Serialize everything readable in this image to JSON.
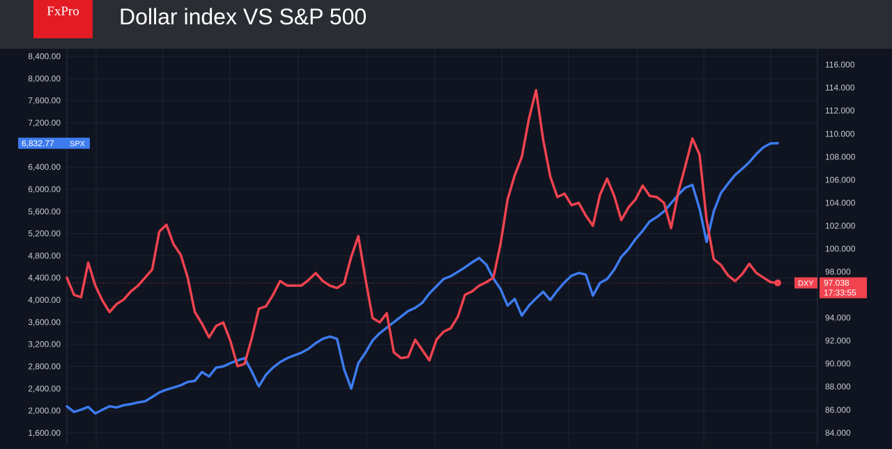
{
  "header": {
    "logo_text": "FxPro",
    "title": "Dollar index VS S&P 500"
  },
  "colors": {
    "header_bg": "#2a2d33",
    "chart_bg": "#0f1420",
    "brand_red": "#e31b23",
    "spx_blue": "#3d7bef",
    "dxy_red": "#f0434f",
    "grid": "#1c2433",
    "axis_text": "#c9ccd2"
  },
  "chart_data": {
    "type": "line",
    "title": "Dollar index VS S&P 500",
    "y_left": {
      "label": "SPX",
      "ticks": [
        1600,
        2000,
        2400,
        2800,
        3200,
        3600,
        4000,
        4400,
        4800,
        5200,
        5600,
        6000,
        6400,
        7200,
        7600,
        8000,
        8400
      ],
      "tick_labels": [
        "1,600.00",
        "2,000.00",
        "2,400.00",
        "2,800.00",
        "3,200.00",
        "3,600.00",
        "4,000.00",
        "4,400.00",
        "4,800.00",
        "5,200.00",
        "5,600.00",
        "6,000.00",
        "6,400.00",
        "7,200.00",
        "7,600.00",
        "8,000.00",
        "8,400.00"
      ],
      "range": [
        1372,
        8540
      ]
    },
    "y_right": {
      "label": "DXY",
      "ticks": [
        84,
        86,
        88,
        90,
        92,
        94,
        98,
        100,
        102,
        104,
        106,
        108,
        110,
        112,
        114,
        116
      ],
      "tick_labels": [
        "84.000",
        "86.000",
        "88.000",
        "90.000",
        "92.000",
        "94.000",
        "98.000",
        "100.000",
        "102.000",
        "104.000",
        "106.000",
        "108.000",
        "110.000",
        "112.000",
        "114.000",
        "116.000"
      ],
      "range": [
        82.9,
        117.4
      ]
    },
    "x_range": [
      0,
      100
    ],
    "grid": true,
    "series": [
      {
        "name": "SPX",
        "axis": "left",
        "last_value": 6832.77,
        "last_label": "6,832.77",
        "tag": "SPX",
        "points": [
          [
            0,
            2080
          ],
          [
            1,
            1980
          ],
          [
            2,
            2020
          ],
          [
            3,
            2070
          ],
          [
            4,
            1950
          ],
          [
            5,
            2020
          ],
          [
            6,
            2080
          ],
          [
            7,
            2060
          ],
          [
            8,
            2100
          ],
          [
            9,
            2120
          ],
          [
            10,
            2150
          ],
          [
            11,
            2170
          ],
          [
            12,
            2250
          ],
          [
            13,
            2330
          ],
          [
            14,
            2380
          ],
          [
            15,
            2420
          ],
          [
            16,
            2460
          ],
          [
            17,
            2520
          ],
          [
            18,
            2540
          ],
          [
            19,
            2700
          ],
          [
            20,
            2620
          ],
          [
            21,
            2780
          ],
          [
            22,
            2800
          ],
          [
            23,
            2860
          ],
          [
            24,
            2910
          ],
          [
            25,
            2950
          ],
          [
            26,
            2710
          ],
          [
            27,
            2440
          ],
          [
            28,
            2650
          ],
          [
            29,
            2780
          ],
          [
            30,
            2880
          ],
          [
            31,
            2950
          ],
          [
            32,
            3000
          ],
          [
            33,
            3050
          ],
          [
            34,
            3120
          ],
          [
            35,
            3220
          ],
          [
            36,
            3300
          ],
          [
            37,
            3340
          ],
          [
            38,
            3300
          ],
          [
            39,
            2750
          ],
          [
            40,
            2400
          ],
          [
            41,
            2860
          ],
          [
            42,
            3050
          ],
          [
            43,
            3270
          ],
          [
            44,
            3400
          ],
          [
            45,
            3500
          ],
          [
            46,
            3600
          ],
          [
            47,
            3700
          ],
          [
            48,
            3800
          ],
          [
            49,
            3860
          ],
          [
            50,
            3950
          ],
          [
            51,
            4120
          ],
          [
            52,
            4250
          ],
          [
            53,
            4380
          ],
          [
            54,
            4430
          ],
          [
            55,
            4510
          ],
          [
            56,
            4590
          ],
          [
            57,
            4680
          ],
          [
            58,
            4760
          ],
          [
            59,
            4640
          ],
          [
            60,
            4390
          ],
          [
            61,
            4200
          ],
          [
            62,
            3900
          ],
          [
            63,
            4020
          ],
          [
            64,
            3720
          ],
          [
            65,
            3900
          ],
          [
            66,
            4030
          ],
          [
            67,
            4150
          ],
          [
            68,
            4000
          ],
          [
            69,
            4170
          ],
          [
            70,
            4320
          ],
          [
            71,
            4440
          ],
          [
            72,
            4490
          ],
          [
            73,
            4460
          ],
          [
            74,
            4080
          ],
          [
            75,
            4310
          ],
          [
            76,
            4380
          ],
          [
            77,
            4550
          ],
          [
            78,
            4780
          ],
          [
            79,
            4920
          ],
          [
            80,
            5100
          ],
          [
            81,
            5250
          ],
          [
            82,
            5420
          ],
          [
            83,
            5500
          ],
          [
            84,
            5600
          ],
          [
            85,
            5750
          ],
          [
            86,
            5900
          ],
          [
            87,
            6030
          ],
          [
            88,
            6080
          ],
          [
            89,
            5650
          ],
          [
            90,
            5050
          ],
          [
            91,
            5600
          ],
          [
            92,
            5930
          ],
          [
            93,
            6100
          ],
          [
            94,
            6260
          ],
          [
            95,
            6370
          ],
          [
            96,
            6490
          ],
          [
            97,
            6640
          ],
          [
            98,
            6760
          ],
          [
            99,
            6830
          ],
          [
            100,
            6833
          ]
        ]
      },
      {
        "name": "DXY",
        "axis": "right",
        "last_value": 97.038,
        "last_label": "97.038",
        "tag": "DXY",
        "countdown": "17:33:55",
        "points": [
          [
            0,
            97.5
          ],
          [
            1,
            96.0
          ],
          [
            2,
            95.8
          ],
          [
            3,
            98.8
          ],
          [
            4,
            96.8
          ],
          [
            5,
            95.5
          ],
          [
            6,
            94.5
          ],
          [
            7,
            95.2
          ],
          [
            8,
            95.6
          ],
          [
            9,
            96.3
          ],
          [
            10,
            96.8
          ],
          [
            11,
            97.5
          ],
          [
            12,
            98.2
          ],
          [
            13,
            101.5
          ],
          [
            14,
            102.1
          ],
          [
            15,
            100.4
          ],
          [
            16,
            99.5
          ],
          [
            17,
            97.5
          ],
          [
            18,
            94.5
          ],
          [
            19,
            93.5
          ],
          [
            20,
            92.3
          ],
          [
            21,
            93.3
          ],
          [
            22,
            93.6
          ],
          [
            23,
            92.0
          ],
          [
            24,
            89.8
          ],
          [
            25,
            90.0
          ],
          [
            26,
            92.2
          ],
          [
            27,
            94.8
          ],
          [
            28,
            95.0
          ],
          [
            29,
            96.0
          ],
          [
            30,
            97.2
          ],
          [
            31,
            96.8
          ],
          [
            32,
            96.8
          ],
          [
            33,
            96.8
          ],
          [
            34,
            97.3
          ],
          [
            35,
            97.9
          ],
          [
            36,
            97.2
          ],
          [
            37,
            96.8
          ],
          [
            38,
            96.6
          ],
          [
            39,
            97.0
          ],
          [
            40,
            99.3
          ],
          [
            41,
            101.1
          ],
          [
            42,
            97.4
          ],
          [
            43,
            94.0
          ],
          [
            44,
            93.6
          ],
          [
            45,
            94.4
          ],
          [
            46,
            91.0
          ],
          [
            47,
            90.5
          ],
          [
            48,
            90.6
          ],
          [
            49,
            92.1
          ],
          [
            50,
            91.2
          ],
          [
            51,
            90.3
          ],
          [
            52,
            92.1
          ],
          [
            53,
            92.8
          ],
          [
            54,
            93.1
          ],
          [
            55,
            94.1
          ],
          [
            56,
            96.0
          ],
          [
            57,
            96.3
          ],
          [
            58,
            96.8
          ],
          [
            59,
            97.1
          ],
          [
            60,
            97.5
          ],
          [
            61,
            100.4
          ],
          [
            62,
            104.3
          ],
          [
            63,
            106.4
          ],
          [
            64,
            108.0
          ],
          [
            65,
            111.3
          ],
          [
            66,
            113.8
          ],
          [
            67,
            109.5
          ],
          [
            68,
            106.3
          ],
          [
            69,
            104.5
          ],
          [
            70,
            104.8
          ],
          [
            71,
            103.8
          ],
          [
            72,
            104.0
          ],
          [
            73,
            102.9
          ],
          [
            74,
            102.0
          ],
          [
            75,
            104.7
          ],
          [
            76,
            106.1
          ],
          [
            77,
            104.6
          ],
          [
            78,
            102.5
          ],
          [
            79,
            103.6
          ],
          [
            80,
            104.3
          ],
          [
            81,
            105.5
          ],
          [
            82,
            104.6
          ],
          [
            83,
            104.5
          ],
          [
            84,
            104.0
          ],
          [
            85,
            101.8
          ],
          [
            86,
            104.9
          ],
          [
            87,
            107.2
          ],
          [
            88,
            109.6
          ],
          [
            89,
            108.2
          ],
          [
            90,
            102.5
          ],
          [
            91,
            99.1
          ],
          [
            92,
            98.6
          ],
          [
            93,
            97.7
          ],
          [
            94,
            97.2
          ],
          [
            95,
            97.8
          ],
          [
            96,
            98.7
          ],
          [
            97,
            97.9
          ],
          [
            98,
            97.5
          ],
          [
            99,
            97.1
          ],
          [
            100,
            97.04
          ]
        ]
      }
    ],
    "reference_line": {
      "axis": "right",
      "value": 97.038
    }
  }
}
